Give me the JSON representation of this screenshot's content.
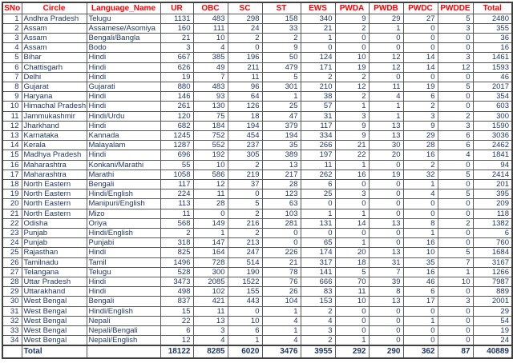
{
  "colors": {
    "header_text": "#ff0000",
    "body_text": "#1f3864",
    "grid_border": "#595959",
    "heavy_border": "#3f3f3f",
    "background": "#ffffff"
  },
  "chart_data": {
    "type": "table",
    "title": "",
    "columns": [
      "SNo",
      "Circle",
      "Language_Name",
      "UR",
      "OBC",
      "SC",
      "ST",
      "EWS",
      "PWDA",
      "PWDB",
      "PWDC",
      "PWDDE",
      "Total"
    ],
    "rows": [
      [
        1,
        "Andhra Pradesh",
        "Telugu",
        1131,
        483,
        298,
        158,
        340,
        9,
        29,
        27,
        5,
        2480
      ],
      [
        2,
        "Assam",
        "Assamese/Asomiya",
        160,
        111,
        24,
        33,
        21,
        2,
        1,
        0,
        3,
        355
      ],
      [
        3,
        "Assam",
        "Bengali/Bangla",
        21,
        10,
        2,
        2,
        1,
        0,
        0,
        0,
        0,
        36
      ],
      [
        4,
        "Assam",
        "Bodo",
        3,
        4,
        0,
        9,
        0,
        0,
        0,
        0,
        0,
        16
      ],
      [
        5,
        "Bihar",
        "Hindi",
        667,
        385,
        196,
        50,
        124,
        10,
        12,
        14,
        3,
        1461
      ],
      [
        6,
        "Chattisgarh",
        "Hindi",
        626,
        49,
        211,
        479,
        171,
        19,
        12,
        14,
        12,
        1593
      ],
      [
        7,
        "Delhi",
        "Hindi",
        19,
        7,
        11,
        5,
        2,
        2,
        0,
        0,
        0,
        46
      ],
      [
        8,
        "Gujarat",
        "Gujarati",
        880,
        483,
        96,
        301,
        210,
        12,
        11,
        19,
        5,
        2017
      ],
      [
        9,
        "Haryana",
        "Hindi",
        146,
        93,
        64,
        1,
        38,
        2,
        4,
        6,
        0,
        354
      ],
      [
        10,
        "Himachal Pradesh",
        "Hindi",
        261,
        130,
        126,
        25,
        57,
        1,
        1,
        2,
        0,
        603
      ],
      [
        11,
        "Jammukashmir",
        "Hindi/Urdu",
        120,
        75,
        18,
        47,
        31,
        3,
        1,
        3,
        2,
        300
      ],
      [
        12,
        "Jharkhand",
        "Hindi",
        682,
        184,
        194,
        379,
        117,
        9,
        13,
        9,
        3,
        1590
      ],
      [
        13,
        "Karnataka",
        "Kannada",
        1245,
        752,
        454,
        194,
        334,
        9,
        13,
        29,
        6,
        3036
      ],
      [
        14,
        "Kerala",
        "Malayalam",
        1287,
        552,
        237,
        35,
        266,
        21,
        30,
        28,
        6,
        2462
      ],
      [
        15,
        "Madhya Pradesh",
        "Hindi",
        696,
        192,
        305,
        389,
        197,
        22,
        20,
        16,
        4,
        1841
      ],
      [
        16,
        "Maharashtra",
        "Konkani/Marathi",
        55,
        10,
        2,
        13,
        11,
        1,
        0,
        2,
        0,
        94
      ],
      [
        17,
        "Maharashtra",
        "Marathi",
        1058,
        586,
        219,
        217,
        262,
        16,
        19,
        32,
        5,
        2414
      ],
      [
        18,
        "North Eastern",
        "Bengali",
        117,
        12,
        37,
        28,
        6,
        0,
        0,
        1,
        0,
        201
      ],
      [
        19,
        "North Eastern",
        "Hindi/English",
        224,
        11,
        0,
        123,
        25,
        3,
        0,
        4,
        5,
        395
      ],
      [
        20,
        "North Eastern",
        "Manipuri/English",
        113,
        28,
        5,
        63,
        0,
        0,
        0,
        0,
        0,
        209
      ],
      [
        21,
        "North Eastern",
        "Mizo",
        11,
        0,
        2,
        103,
        1,
        1,
        0,
        0,
        0,
        118
      ],
      [
        22,
        "Odisha",
        "Oriya",
        568,
        149,
        216,
        281,
        131,
        14,
        13,
        8,
        2,
        1382
      ],
      [
        23,
        "Punjab",
        "Hindi/English",
        2,
        1,
        2,
        0,
        0,
        0,
        0,
        1,
        0,
        6
      ],
      [
        24,
        "Punjab",
        "Punjabi",
        318,
        147,
        213,
        0,
        65,
        1,
        0,
        16,
        0,
        760
      ],
      [
        25,
        "Rajasthan",
        "Hindi",
        825,
        164,
        247,
        226,
        174,
        20,
        13,
        10,
        5,
        1684
      ],
      [
        26,
        "Tamilnadu",
        "Tamil",
        1496,
        728,
        514,
        21,
        317,
        18,
        31,
        35,
        7,
        3167
      ],
      [
        27,
        "Telangana",
        "Telugu",
        528,
        300,
        190,
        78,
        141,
        5,
        7,
        16,
        1,
        1266
      ],
      [
        28,
        "Uttar Pradesh",
        "Hindi",
        3473,
        2085,
        1522,
        76,
        666,
        70,
        39,
        46,
        10,
        7987
      ],
      [
        29,
        "Uttarakhand",
        "Hindi",
        498,
        102,
        155,
        26,
        83,
        11,
        8,
        6,
        0,
        889
      ],
      [
        30,
        "West Bengal",
        "Bengali",
        837,
        421,
        443,
        104,
        153,
        10,
        13,
        17,
        3,
        2001
      ],
      [
        31,
        "West Bengal",
        "Hindi/English",
        15,
        11,
        0,
        1,
        2,
        0,
        0,
        0,
        0,
        29
      ],
      [
        32,
        "West Bengal",
        "Nepali",
        22,
        13,
        10,
        4,
        4,
        0,
        0,
        1,
        0,
        54
      ],
      [
        33,
        "West Bengal",
        "Nepali/Bengali",
        6,
        3,
        6,
        1,
        3,
        0,
        0,
        0,
        0,
        19
      ],
      [
        34,
        "West Bengal",
        "Nepali/English",
        12,
        4,
        1,
        4,
        2,
        1,
        0,
        0,
        0,
        24
      ]
    ],
    "total_row": [
      "",
      "Total",
      "",
      18122,
      8285,
      6020,
      3476,
      3955,
      292,
      290,
      362,
      87,
      40889
    ]
  }
}
